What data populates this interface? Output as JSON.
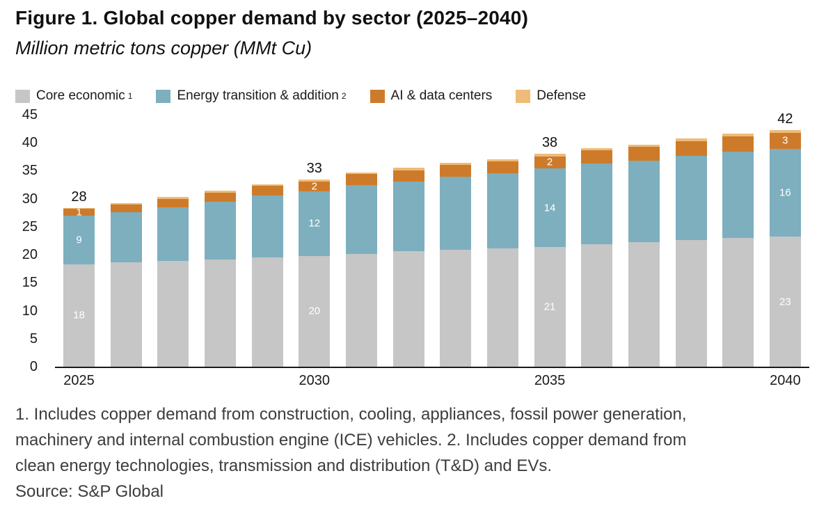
{
  "figure": {
    "title": "Figure 1. Global copper demand by sector (2025–2040)",
    "subtitle": "Million metric tons copper (MMt Cu)",
    "footnote": "1. Includes copper demand from construction, cooling, appliances, fossil power generation, machinery and internal combustion engine (ICE) vehicles. 2. Includes copper demand from clean energy technologies, transmission and distribution (T&D) and EVs.",
    "source": "Source: S&P Global"
  },
  "chart_data": {
    "type": "bar",
    "stacked": true,
    "title": "Figure 1. Global copper demand by sector (2025–2040)",
    "subtitle": "Million metric tons copper (MMt Cu)",
    "xlabel": "",
    "ylabel": "Million metric tons copper (MMt Cu)",
    "ylim": [
      0,
      45
    ],
    "yticks": [
      0,
      5,
      10,
      15,
      20,
      25,
      30,
      35,
      40,
      45
    ],
    "x": [
      2025,
      2026,
      2027,
      2028,
      2029,
      2030,
      2031,
      2032,
      2033,
      2034,
      2035,
      2036,
      2037,
      2038,
      2039,
      2040
    ],
    "xticks": [
      2025,
      2030,
      2035,
      2040
    ],
    "grid": false,
    "legend_position": "top",
    "series": [
      {
        "key": "core",
        "name": "Core economic",
        "sup": "1",
        "color": "#c6c6c6",
        "values": [
          18.3,
          18.6,
          18.9,
          19.2,
          19.5,
          19.8,
          20.2,
          20.6,
          20.9,
          21.1,
          21.4,
          21.9,
          22.2,
          22.6,
          23.0,
          23.2
        ]
      },
      {
        "key": "energy",
        "name": "Energy transition & addition",
        "sup": "2",
        "color": "#7dafbe",
        "values": [
          8.7,
          9.0,
          9.6,
          10.3,
          11.1,
          11.5,
          12.2,
          12.5,
          13.0,
          13.5,
          14.0,
          14.4,
          14.6,
          15.1,
          15.4,
          15.7
        ]
      },
      {
        "key": "ai",
        "name": "AI & data centers",
        "sup": "",
        "color": "#cd7b2a",
        "values": [
          1.2,
          1.4,
          1.5,
          1.6,
          1.7,
          1.8,
          2.0,
          2.0,
          2.1,
          2.1,
          2.2,
          2.4,
          2.5,
          2.6,
          2.8,
          2.9
        ]
      },
      {
        "key": "defense",
        "name": "Defense",
        "sup": "",
        "color": "#eebb78",
        "values": [
          0.2,
          0.2,
          0.3,
          0.3,
          0.3,
          0.3,
          0.3,
          0.4,
          0.4,
          0.4,
          0.4,
          0.4,
          0.4,
          0.5,
          0.5,
          0.5
        ]
      }
    ],
    "labels": {
      "totals": {
        "2025": "28",
        "2030": "33",
        "2035": "38",
        "2040": "42"
      },
      "segments": {
        "core": {
          "2025": "18",
          "2030": "20",
          "2035": "21",
          "2040": "23"
        },
        "energy": {
          "2025": "9",
          "2030": "12",
          "2035": "14",
          "2040": "16"
        },
        "ai": {
          "2025": "1",
          "2030": "2",
          "2035": "2",
          "2040": "3"
        }
      }
    }
  }
}
